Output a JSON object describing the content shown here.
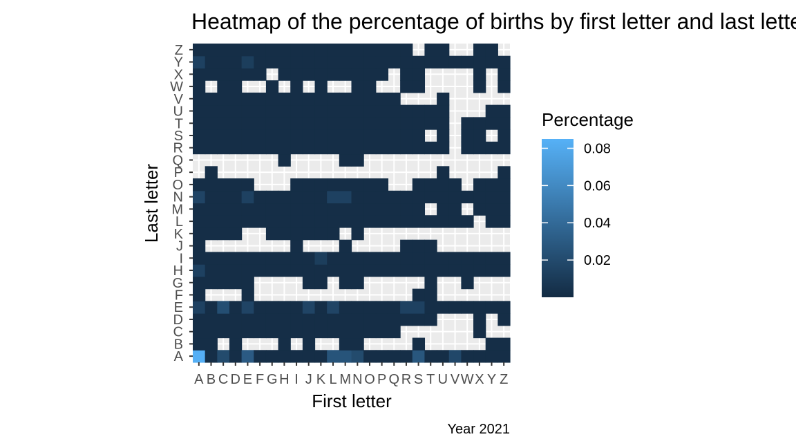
{
  "chart_data": {
    "type": "heatmap",
    "title": "Heatmap of the percentage of births by first letter and last letter",
    "xlabel": "First letter",
    "ylabel": "Last letter",
    "caption": "Year 2021",
    "x_categories": [
      "A",
      "B",
      "C",
      "D",
      "E",
      "F",
      "G",
      "H",
      "I",
      "J",
      "K",
      "L",
      "M",
      "N",
      "O",
      "P",
      "Q",
      "R",
      "S",
      "T",
      "U",
      "V",
      "W",
      "X",
      "Y",
      "Z"
    ],
    "y_categories": [
      "A",
      "B",
      "C",
      "D",
      "E",
      "F",
      "G",
      "H",
      "I",
      "J",
      "K",
      "L",
      "M",
      "N",
      "O",
      "P",
      "Q",
      "R",
      "S",
      "T",
      "U",
      "V",
      "W",
      "X",
      "Y",
      "Z"
    ],
    "legend": {
      "title": "Percentage",
      "ticks": [
        0.02,
        0.04,
        0.06,
        0.08
      ],
      "tick_labels": [
        "0.02",
        "0.04",
        "0.06",
        "0.08"
      ],
      "range": [
        0.0,
        0.085
      ],
      "color_low": "#132B43",
      "color_high": "#56B1F7",
      "position": "right"
    },
    "panel_background": "#EBEBEB",
    "grid": true,
    "rows_present": [
      "11111111111111111111111111",
      "11010001010011000010000011",
      "11111111111111111000000100",
      "11111111111111111111000101",
      "11111111111111111111111111",
      "10001000000000000011000000",
      "11111000011011000001001000",
      "11111111111111111111111111",
      "11111111111111111111111111",
      "10000000100010000111000000",
      "11110011111101000000000000",
      "11111111111111111111111011",
      "11111111111111111110110111",
      "11111111111111111111111111",
      "11111000111111110011110111",
      "01000000000000000000100001",
      "00000001000011000000000000",
      "11111111111111111111101111",
      "11111111111111111110101101",
      "11111111111111111111101111",
      "11111111111111111111100011",
      "11111111111111111000100000",
      "10110010101001100110000101",
      "11111101111111110110000101",
      "11111111111111111111111111",
      "11111111111111111101100110"
    ],
    "notable_values": [
      {
        "x": "A",
        "y": "A",
        "value": 0.084
      },
      {
        "x": "E",
        "y": "A",
        "value": 0.03
      },
      {
        "x": "S",
        "y": "A",
        "value": 0.028
      },
      {
        "x": "L",
        "y": "A",
        "value": 0.026
      },
      {
        "x": "M",
        "y": "A",
        "value": 0.026
      },
      {
        "x": "C",
        "y": "A",
        "value": 0.02
      },
      {
        "x": "N",
        "y": "A",
        "value": 0.02
      },
      {
        "x": "V",
        "y": "A",
        "value": 0.018
      },
      {
        "x": "C",
        "y": "E",
        "value": 0.022
      },
      {
        "x": "E",
        "y": "E",
        "value": 0.016
      },
      {
        "x": "J",
        "y": "E",
        "value": 0.016
      },
      {
        "x": "L",
        "y": "E",
        "value": 0.016
      },
      {
        "x": "A",
        "y": "E",
        "value": 0.014
      },
      {
        "x": "R",
        "y": "E",
        "value": 0.014
      },
      {
        "x": "S",
        "y": "E",
        "value": 0.014
      },
      {
        "x": "A",
        "y": "H",
        "value": 0.014
      },
      {
        "x": "A",
        "y": "N",
        "value": 0.016
      },
      {
        "x": "E",
        "y": "N",
        "value": 0.014
      },
      {
        "x": "L",
        "y": "N",
        "value": 0.014
      },
      {
        "x": "M",
        "y": "N",
        "value": 0.014
      },
      {
        "x": "A",
        "y": "Y",
        "value": 0.014
      },
      {
        "x": "E",
        "y": "Y",
        "value": 0.012
      },
      {
        "x": "K",
        "y": "I",
        "value": 0.012
      }
    ],
    "default_value": 0.002
  }
}
